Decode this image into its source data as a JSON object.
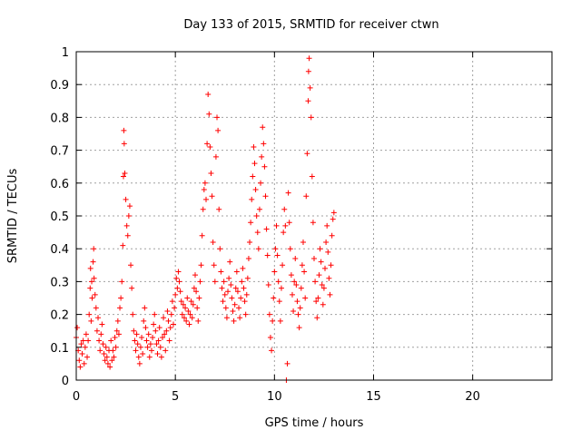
{
  "chart_data": {
    "type": "scatter",
    "title": "Day 133 of 2015, SRMTID for receiver ctwn",
    "xlabel": "GPS time / hours",
    "ylabel": "SRMTID / TECUs",
    "xlim": [
      0,
      24
    ],
    "ylim": [
      0,
      1
    ],
    "xticks": [
      0,
      5,
      10,
      15,
      20
    ],
    "yticks": [
      0,
      0.1,
      0.2,
      0.3,
      0.4,
      0.5,
      0.6,
      0.7,
      0.8,
      0.9,
      1
    ],
    "grid": true,
    "marker": "+",
    "color": "#ff0000",
    "series": [
      {
        "name": "SRMTID",
        "points": [
          [
            0.0,
            0.13
          ],
          [
            0.05,
            0.16
          ],
          [
            0.1,
            0.09
          ],
          [
            0.15,
            0.06
          ],
          [
            0.2,
            0.04
          ],
          [
            0.25,
            0.11
          ],
          [
            0.3,
            0.08
          ],
          [
            0.35,
            0.12
          ],
          [
            0.4,
            0.05
          ],
          [
            0.45,
            0.1
          ],
          [
            0.5,
            0.14
          ],
          [
            0.55,
            0.07
          ],
          [
            0.6,
            0.12
          ],
          [
            0.65,
            0.2
          ],
          [
            0.7,
            0.28
          ],
          [
            0.72,
            0.34
          ],
          [
            0.75,
            0.18
          ],
          [
            0.78,
            0.3
          ],
          [
            0.8,
            0.25
          ],
          [
            0.85,
            0.36
          ],
          [
            0.88,
            0.4
          ],
          [
            0.9,
            0.31
          ],
          [
            0.95,
            0.26
          ],
          [
            1.0,
            0.22
          ],
          [
            1.05,
            0.15
          ],
          [
            1.1,
            0.19
          ],
          [
            1.15,
            0.12
          ],
          [
            1.2,
            0.09
          ],
          [
            1.25,
            0.14
          ],
          [
            1.3,
            0.17
          ],
          [
            1.35,
            0.11
          ],
          [
            1.4,
            0.08
          ],
          [
            1.45,
            0.06
          ],
          [
            1.5,
            0.1
          ],
          [
            1.55,
            0.07
          ],
          [
            1.6,
            0.05
          ],
          [
            1.65,
            0.09
          ],
          [
            1.7,
            0.04
          ],
          [
            1.75,
            0.12
          ],
          [
            1.8,
            0.06
          ],
          [
            1.85,
            0.09
          ],
          [
            1.9,
            0.07
          ],
          [
            1.95,
            0.13
          ],
          [
            2.0,
            0.1
          ],
          [
            2.05,
            0.15
          ],
          [
            2.1,
            0.18
          ],
          [
            2.15,
            0.14
          ],
          [
            2.2,
            0.22
          ],
          [
            2.25,
            0.25
          ],
          [
            2.3,
            0.3
          ],
          [
            2.35,
            0.41
          ],
          [
            2.38,
            0.62
          ],
          [
            2.4,
            0.76
          ],
          [
            2.42,
            0.72
          ],
          [
            2.45,
            0.63
          ],
          [
            2.5,
            0.55
          ],
          [
            2.55,
            0.47
          ],
          [
            2.6,
            0.44
          ],
          [
            2.65,
            0.5
          ],
          [
            2.7,
            0.53
          ],
          [
            2.75,
            0.35
          ],
          [
            2.8,
            0.28
          ],
          [
            2.85,
            0.2
          ],
          [
            2.9,
            0.15
          ],
          [
            2.95,
            0.12
          ],
          [
            3.0,
            0.09
          ],
          [
            3.05,
            0.14
          ],
          [
            3.1,
            0.11
          ],
          [
            3.15,
            0.07
          ],
          [
            3.2,
            0.05
          ],
          [
            3.25,
            0.1
          ],
          [
            3.3,
            0.13
          ],
          [
            3.35,
            0.08
          ],
          [
            3.4,
            0.18
          ],
          [
            3.45,
            0.22
          ],
          [
            3.5,
            0.16
          ],
          [
            3.55,
            0.12
          ],
          [
            3.6,
            0.1
          ],
          [
            3.65,
            0.14
          ],
          [
            3.7,
            0.07
          ],
          [
            3.75,
            0.11
          ],
          [
            3.8,
            0.09
          ],
          [
            3.85,
            0.13
          ],
          [
            3.9,
            0.17
          ],
          [
            3.95,
            0.2
          ],
          [
            4.0,
            0.15
          ],
          [
            4.05,
            0.11
          ],
          [
            4.1,
            0.08
          ],
          [
            4.15,
            0.12
          ],
          [
            4.2,
            0.16
          ],
          [
            4.25,
            0.1
          ],
          [
            4.3,
            0.07
          ],
          [
            4.35,
            0.13
          ],
          [
            4.4,
            0.19
          ],
          [
            4.45,
            0.14
          ],
          [
            4.5,
            0.09
          ],
          [
            4.55,
            0.15
          ],
          [
            4.6,
            0.21
          ],
          [
            4.65,
            0.18
          ],
          [
            4.7,
            0.12
          ],
          [
            4.75,
            0.16
          ],
          [
            4.8,
            0.2
          ],
          [
            4.85,
            0.24
          ],
          [
            4.9,
            0.17
          ],
          [
            4.95,
            0.22
          ],
          [
            5.0,
            0.26
          ],
          [
            5.05,
            0.31
          ],
          [
            5.1,
            0.28
          ],
          [
            5.15,
            0.33
          ],
          [
            5.2,
            0.3
          ],
          [
            5.25,
            0.27
          ],
          [
            5.3,
            0.24
          ],
          [
            5.35,
            0.2
          ],
          [
            5.4,
            0.23
          ],
          [
            5.45,
            0.19
          ],
          [
            5.5,
            0.22
          ],
          [
            5.55,
            0.18
          ],
          [
            5.6,
            0.25
          ],
          [
            5.65,
            0.21
          ],
          [
            5.7,
            0.17
          ],
          [
            5.75,
            0.2
          ],
          [
            5.8,
            0.24
          ],
          [
            5.85,
            0.19
          ],
          [
            5.9,
            0.23
          ],
          [
            5.95,
            0.28
          ],
          [
            6.0,
            0.32
          ],
          [
            6.05,
            0.27
          ],
          [
            6.1,
            0.22
          ],
          [
            6.15,
            0.18
          ],
          [
            6.2,
            0.25
          ],
          [
            6.25,
            0.3
          ],
          [
            6.3,
            0.35
          ],
          [
            6.35,
            0.44
          ],
          [
            6.4,
            0.52
          ],
          [
            6.45,
            0.58
          ],
          [
            6.5,
            0.6
          ],
          [
            6.55,
            0.55
          ],
          [
            6.6,
            0.72
          ],
          [
            6.65,
            0.87
          ],
          [
            6.7,
            0.81
          ],
          [
            6.75,
            0.71
          ],
          [
            6.8,
            0.63
          ],
          [
            6.85,
            0.56
          ],
          [
            6.9,
            0.42
          ],
          [
            6.95,
            0.35
          ],
          [
            7.0,
            0.3
          ],
          [
            7.05,
            0.68
          ],
          [
            7.1,
            0.8
          ],
          [
            7.15,
            0.76
          ],
          [
            7.2,
            0.52
          ],
          [
            7.25,
            0.4
          ],
          [
            7.3,
            0.33
          ],
          [
            7.35,
            0.28
          ],
          [
            7.4,
            0.24
          ],
          [
            7.45,
            0.3
          ],
          [
            7.5,
            0.26
          ],
          [
            7.55,
            0.22
          ],
          [
            7.6,
            0.19
          ],
          [
            7.65,
            0.27
          ],
          [
            7.7,
            0.31
          ],
          [
            7.75,
            0.36
          ],
          [
            7.8,
            0.29
          ],
          [
            7.85,
            0.25
          ],
          [
            7.9,
            0.21
          ],
          [
            7.95,
            0.18
          ],
          [
            8.0,
            0.23
          ],
          [
            8.05,
            0.28
          ],
          [
            8.1,
            0.33
          ],
          [
            8.15,
            0.27
          ],
          [
            8.2,
            0.22
          ],
          [
            8.25,
            0.19
          ],
          [
            8.3,
            0.25
          ],
          [
            8.35,
            0.3
          ],
          [
            8.4,
            0.34
          ],
          [
            8.45,
            0.28
          ],
          [
            8.5,
            0.24
          ],
          [
            8.55,
            0.2
          ],
          [
            8.6,
            0.26
          ],
          [
            8.65,
            0.31
          ],
          [
            8.7,
            0.37
          ],
          [
            8.75,
            0.42
          ],
          [
            8.8,
            0.48
          ],
          [
            8.85,
            0.55
          ],
          [
            8.9,
            0.62
          ],
          [
            8.95,
            0.71
          ],
          [
            9.0,
            0.66
          ],
          [
            9.05,
            0.58
          ],
          [
            9.1,
            0.5
          ],
          [
            9.15,
            0.45
          ],
          [
            9.2,
            0.4
          ],
          [
            9.25,
            0.52
          ],
          [
            9.3,
            0.6
          ],
          [
            9.35,
            0.68
          ],
          [
            9.4,
            0.77
          ],
          [
            9.45,
            0.72
          ],
          [
            9.5,
            0.65
          ],
          [
            9.55,
            0.56
          ],
          [
            9.6,
            0.46
          ],
          [
            9.65,
            0.38
          ],
          [
            9.7,
            0.29
          ],
          [
            9.75,
            0.2
          ],
          [
            9.8,
            0.13
          ],
          [
            9.85,
            0.09
          ],
          [
            9.9,
            0.18
          ],
          [
            9.95,
            0.25
          ],
          [
            10.0,
            0.33
          ],
          [
            10.05,
            0.4
          ],
          [
            10.1,
            0.47
          ],
          [
            10.15,
            0.38
          ],
          [
            10.2,
            0.3
          ],
          [
            10.25,
            0.24
          ],
          [
            10.3,
            0.18
          ],
          [
            10.35,
            0.28
          ],
          [
            10.4,
            0.35
          ],
          [
            10.45,
            0.45
          ],
          [
            10.5,
            0.52
          ],
          [
            10.55,
            0.47
          ],
          [
            10.6,
            0.0
          ],
          [
            10.65,
            0.05
          ],
          [
            10.7,
            0.57
          ],
          [
            10.75,
            0.48
          ],
          [
            10.8,
            0.4
          ],
          [
            10.85,
            0.32
          ],
          [
            10.9,
            0.26
          ],
          [
            10.95,
            0.21
          ],
          [
            11.0,
            0.3
          ],
          [
            11.05,
            0.37
          ],
          [
            11.1,
            0.29
          ],
          [
            11.15,
            0.24
          ],
          [
            11.2,
            0.2
          ],
          [
            11.25,
            0.16
          ],
          [
            11.3,
            0.22
          ],
          [
            11.35,
            0.28
          ],
          [
            11.4,
            0.35
          ],
          [
            11.45,
            0.42
          ],
          [
            11.5,
            0.33
          ],
          [
            11.55,
            0.25
          ],
          [
            11.6,
            0.56
          ],
          [
            11.65,
            0.69
          ],
          [
            11.7,
            0.85
          ],
          [
            11.72,
            0.94
          ],
          [
            11.75,
            0.98
          ],
          [
            11.8,
            0.89
          ],
          [
            11.85,
            0.8
          ],
          [
            11.9,
            0.62
          ],
          [
            11.95,
            0.48
          ],
          [
            12.0,
            0.37
          ],
          [
            12.05,
            0.3
          ],
          [
            12.1,
            0.24
          ],
          [
            12.15,
            0.19
          ],
          [
            12.2,
            0.25
          ],
          [
            12.25,
            0.32
          ],
          [
            12.3,
            0.4
          ],
          [
            12.35,
            0.36
          ],
          [
            12.4,
            0.29
          ],
          [
            12.45,
            0.23
          ],
          [
            12.5,
            0.28
          ],
          [
            12.55,
            0.34
          ],
          [
            12.6,
            0.42
          ],
          [
            12.65,
            0.47
          ],
          [
            12.7,
            0.39
          ],
          [
            12.75,
            0.31
          ],
          [
            12.8,
            0.26
          ],
          [
            12.85,
            0.35
          ],
          [
            12.9,
            0.44
          ],
          [
            12.95,
            0.49
          ],
          [
            13.0,
            0.51
          ]
        ]
      }
    ]
  }
}
